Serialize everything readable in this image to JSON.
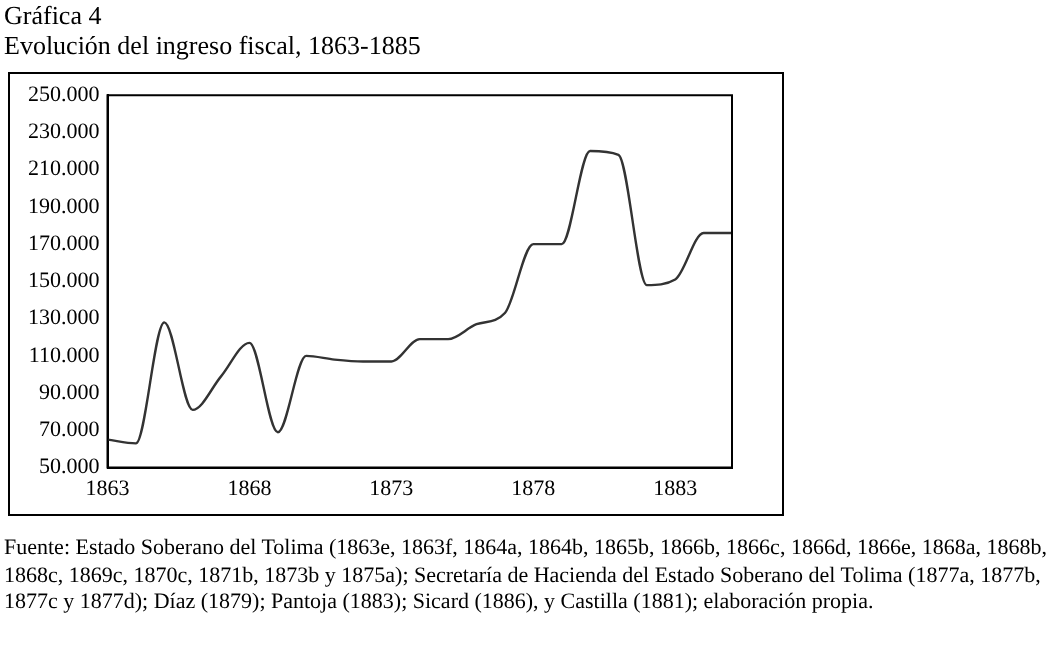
{
  "chart_data": {
    "type": "line",
    "title": "Gráfica 4",
    "subtitle": "Evolución del ingreso fiscal, 1863-1885",
    "categories": [
      "1863",
      null,
      null,
      null,
      null,
      "1868",
      null,
      null,
      null,
      null,
      "1873",
      null,
      null,
      null,
      null,
      "1878",
      null,
      null,
      null,
      null,
      "1883",
      null,
      null
    ],
    "series": [
      {
        "color": "#333333",
        "values": [
          65000,
          63000,
          128000,
          81000,
          99000,
          117000,
          69000,
          110000,
          108000,
          107000,
          107000,
          119000,
          119000,
          127000,
          133000,
          170000,
          170000,
          220000,
          218000,
          148000,
          151000,
          176000,
          176000
        ]
      }
    ],
    "ylim": [
      50000,
      250000
    ],
    "yticks": [
      {
        "value": 50000,
        "label": "50.000"
      },
      {
        "value": 70000,
        "label": "70.000"
      },
      {
        "value": 90000,
        "label": "90.000"
      },
      {
        "value": 110000,
        "label": "110.000"
      },
      {
        "value": 130000,
        "label": "130.000"
      },
      {
        "value": 150000,
        "label": "150.000"
      },
      {
        "value": 170000,
        "label": "170.000"
      },
      {
        "value": 190000,
        "label": "190.000"
      },
      {
        "value": 210000,
        "label": "210.000"
      },
      {
        "value": 230000,
        "label": "230.000"
      },
      {
        "value": 250000,
        "label": "250.000"
      }
    ],
    "grid": false,
    "legend": false,
    "marker": "none",
    "line_style": "solid",
    "annotations": [
      "Fuente: Estado Soberano del Tolima (1863e, 1863f, 1864a, 1864b, 1865b, 1866b, 1866c, 1866d, 1866e, 1868a, 1868b, 1868c, 1869c, 1870c, 1871b, 1873b y 1875a); Secretaría de Hacienda del Estado Soberano del Tolima (1877a, 1877b, 1877c y 1877d); Díaz (1879); Pantoja (1883); Sicard (1886), y Castilla (1881); elaboración propia."
    ]
  }
}
